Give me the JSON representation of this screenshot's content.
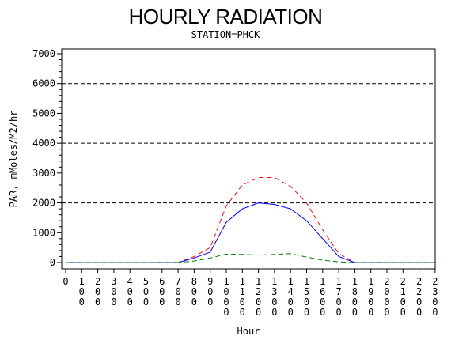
{
  "title": "HOURLY RADIATION",
  "subtitle": "STATION=PHCK",
  "chart_data": {
    "type": "line",
    "title": "HOURLY RADIATION",
    "subtitle": "STATION=PHCK",
    "xlabel": "Hour",
    "ylabel": "PAR, mMoles/M2/hr",
    "x": [
      "0",
      "100",
      "200",
      "300",
      "400",
      "500",
      "600",
      "700",
      "800",
      "900",
      "1000",
      "1100",
      "1200",
      "1300",
      "1400",
      "1500",
      "1600",
      "1700",
      "1800",
      "1900",
      "2000",
      "2100",
      "2200",
      "2300"
    ],
    "ylim": [
      0,
      7000
    ],
    "yticks": [
      0,
      1000,
      2000,
      3000,
      4000,
      5000,
      6000,
      7000
    ],
    "reference_lines": [
      2000,
      4000,
      6000
    ],
    "series": [
      {
        "color": "#ff0000",
        "style": "dashed",
        "values": [
          0,
          0,
          0,
          0,
          0,
          0,
          0,
          0,
          200,
          500,
          1900,
          2600,
          2850,
          2850,
          2550,
          2000,
          1100,
          300,
          0,
          0,
          0,
          0,
          0,
          0
        ]
      },
      {
        "color": "#0000ff",
        "style": "solid",
        "values": [
          0,
          0,
          0,
          0,
          0,
          0,
          0,
          0,
          150,
          350,
          1350,
          1800,
          2000,
          1950,
          1800,
          1400,
          800,
          200,
          0,
          0,
          0,
          0,
          0,
          0
        ]
      },
      {
        "color": "#008000",
        "style": "dashed",
        "values": [
          0,
          0,
          0,
          0,
          0,
          0,
          0,
          0,
          50,
          150,
          280,
          270,
          250,
          270,
          300,
          180,
          80,
          20,
          0,
          0,
          0,
          0,
          0,
          0
        ]
      }
    ]
  }
}
